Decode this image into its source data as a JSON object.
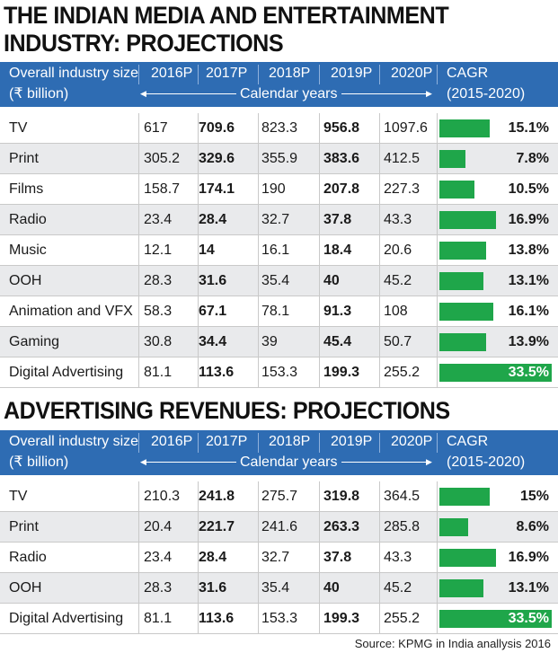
{
  "title_1_line1": "THE INDIAN MEDIA AND ENTERTAINMENT",
  "title_1_line2": "INDUSTRY: PROJECTIONS",
  "title_2": "ADVERTISING REVENUES: PROJECTIONS",
  "header": {
    "col0_line1": "Overall industry size",
    "col0_line2": "(₹ billion)",
    "years": [
      "2016P",
      "2017P",
      "2018P",
      "2019P",
      "2020P"
    ],
    "calendar_label": "Calendar years",
    "cagr_line1": "CAGR",
    "cagr_line2": "(2015-2020)"
  },
  "source": "Source: KPMG in India anallysis 2016",
  "colors": {
    "header_bg": "#2e6cb3",
    "bar": "#1fa64a",
    "alt_row": "#e9eaec"
  },
  "chart_data": [
    {
      "type": "table",
      "title": "THE INDIAN MEDIA AND ENTERTAINMENT INDUSTRY: PROJECTIONS",
      "columns": [
        "Overall industry size (₹ billion)",
        "2016P",
        "2017P",
        "2018P",
        "2019P",
        "2020P",
        "CAGR (2015-2020)"
      ],
      "rows": [
        {
          "label": "TV",
          "values": [
            "617",
            "709.6",
            "823.3",
            "956.8",
            "1097.6"
          ],
          "cagr": 15.1,
          "cagr_label": "15.1%"
        },
        {
          "label": "Print",
          "values": [
            "305.2",
            "329.6",
            "355.9",
            "383.6",
            "412.5"
          ],
          "cagr": 7.8,
          "cagr_label": "7.8%"
        },
        {
          "label": "Films",
          "values": [
            "158.7",
            "174.1",
            "190",
            "207.8",
            "227.3"
          ],
          "cagr": 10.5,
          "cagr_label": "10.5%"
        },
        {
          "label": "Radio",
          "values": [
            "23.4",
            "28.4",
            "32.7",
            "37.8",
            "43.3"
          ],
          "cagr": 16.9,
          "cagr_label": "16.9%"
        },
        {
          "label": "Music",
          "values": [
            "12.1",
            "14",
            "16.1",
            "18.4",
            "20.6"
          ],
          "cagr": 13.8,
          "cagr_label": "13.8%"
        },
        {
          "label": "OOH",
          "values": [
            "28.3",
            "31.6",
            "35.4",
            "40",
            "45.2"
          ],
          "cagr": 13.1,
          "cagr_label": "13.1%"
        },
        {
          "label": "Animation and VFX",
          "values": [
            "58.3",
            "67.1",
            "78.1",
            "91.3",
            "108"
          ],
          "cagr": 16.1,
          "cagr_label": "16.1%"
        },
        {
          "label": "Gaming",
          "values": [
            "30.8",
            "34.4",
            "39",
            "45.4",
            "50.7"
          ],
          "cagr": 13.9,
          "cagr_label": "13.9%"
        },
        {
          "label": "Digital Advertising",
          "values": [
            "81.1",
            "113.6",
            "153.3",
            "199.3",
            "255.2"
          ],
          "cagr": 33.5,
          "cagr_label": "33.5%"
        }
      ]
    },
    {
      "type": "table",
      "title": "ADVERTISING REVENUES: PROJECTIONS",
      "columns": [
        "Overall industry size (₹ billion)",
        "2016P",
        "2017P",
        "2018P",
        "2019P",
        "2020P",
        "CAGR (2015-2020)"
      ],
      "rows": [
        {
          "label": "TV",
          "values": [
            "210.3",
            "241.8",
            "275.7",
            "319.8",
            "364.5"
          ],
          "cagr": 15,
          "cagr_label": "15%"
        },
        {
          "label": "Print",
          "values": [
            "20.4",
            "221.7",
            "241.6",
            "263.3",
            "285.8"
          ],
          "cagr": 8.6,
          "cagr_label": "8.6%"
        },
        {
          "label": "Radio",
          "values": [
            "23.4",
            "28.4",
            "32.7",
            "37.8",
            "43.3"
          ],
          "cagr": 16.9,
          "cagr_label": "16.9%"
        },
        {
          "label": "OOH",
          "values": [
            "28.3",
            "31.6",
            "35.4",
            "40",
            "45.2"
          ],
          "cagr": 13.1,
          "cagr_label": "13.1%"
        },
        {
          "label": "Digital Advertising",
          "values": [
            "81.1",
            "113.6",
            "153.3",
            "199.3",
            "255.2"
          ],
          "cagr": 33.5,
          "cagr_label": "33.5%"
        }
      ]
    }
  ]
}
